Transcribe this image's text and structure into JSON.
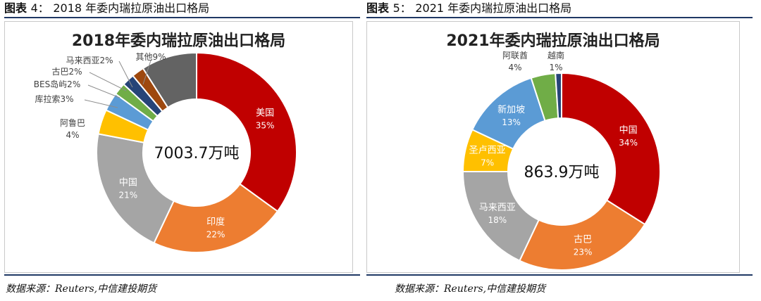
{
  "figures": [
    {
      "fig_label": "图表",
      "fig_num": "4：",
      "fig_caption": "2018 年委内瑞拉原油出口格局",
      "source": "数据来源：Reuters,中信建投期货",
      "chart_data": {
        "type": "pie",
        "title": "2018年委内瑞拉原油出口格局",
        "center_label": "7003.7万吨",
        "slices": [
          {
            "name": "美国",
            "value": 35,
            "label": "35%",
            "color": "#c00000"
          },
          {
            "name": "印度",
            "value": 22,
            "label": "22%",
            "color": "#ed7d31"
          },
          {
            "name": "中国",
            "value": 21,
            "label": "21%",
            "color": "#a5a5a5"
          },
          {
            "name": "阿鲁巴",
            "value": 4,
            "label": "4%",
            "color": "#ffc000"
          },
          {
            "name": "库拉索",
            "value": 3,
            "label": "3%",
            "color": "#5b9bd5"
          },
          {
            "name": "BES岛屿",
            "value": 2,
            "label": "2%",
            "color": "#70ad47"
          },
          {
            "name": "古巴",
            "value": 2,
            "label": "2%",
            "color": "#264478"
          },
          {
            "name": "马来西亚",
            "value": 2,
            "label": "2%",
            "color": "#9e480e"
          },
          {
            "name": "其他",
            "value": 9,
            "label": "9%",
            "color": "#636363"
          }
        ]
      }
    },
    {
      "fig_label": "图表",
      "fig_num": "5：",
      "fig_caption": "2021 年委内瑞拉原油出口格局",
      "source": "数据来源：Reuters,中信建投期货",
      "chart_data": {
        "type": "pie",
        "title": "2021年委内瑞拉原油出口格局",
        "center_label": "863.9万吨",
        "slices": [
          {
            "name": "中国",
            "value": 34,
            "label": "34%",
            "color": "#c00000"
          },
          {
            "name": "古巴",
            "value": 23,
            "label": "23%",
            "color": "#ed7d31"
          },
          {
            "name": "马来西亚",
            "value": 18,
            "label": "18%",
            "color": "#a5a5a5"
          },
          {
            "name": "圣卢西亚",
            "value": 7,
            "label": "7%",
            "color": "#ffc000"
          },
          {
            "name": "新加坡",
            "value": 13,
            "label": "13%",
            "color": "#5b9bd5"
          },
          {
            "name": "阿联酋",
            "value": 4,
            "label": "4%",
            "color": "#70ad47"
          },
          {
            "name": "越南",
            "value": 1,
            "label": "1%",
            "color": "#264478"
          }
        ]
      }
    }
  ]
}
